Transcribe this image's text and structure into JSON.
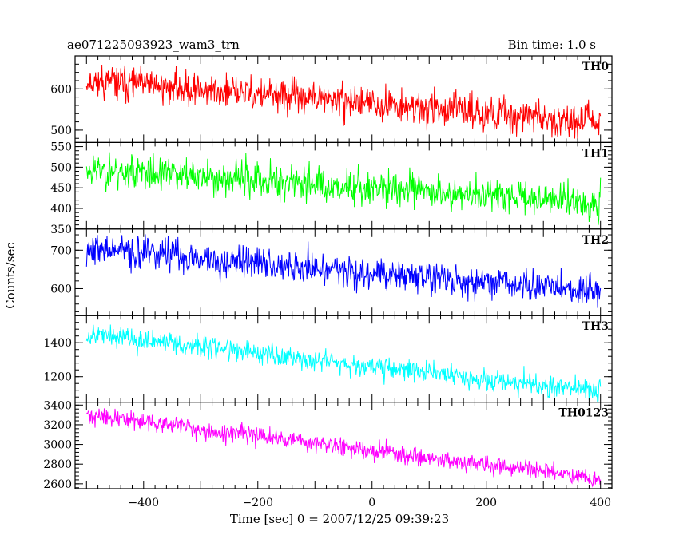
{
  "header": {
    "title": "ae071225093923_wam3_trn",
    "bin_time": "Bin time: 1.0 s"
  },
  "chart_data": {
    "type": "line",
    "xlabel": "Time [sec] 0 = 2007/12/25 09:39:23",
    "ylabel": "Counts/sec",
    "xlim": [
      -520,
      420
    ],
    "x_ticks": [
      -400,
      -200,
      0,
      200,
      400
    ],
    "x_range": [
      -500,
      400
    ],
    "series": [
      {
        "name": "TH0",
        "color": "#ff0000",
        "ylim": [
          470,
          680
        ],
        "y_ticks": [
          500,
          600
        ],
        "y_tick_labels": [
          "500",
          "600"
        ],
        "start": 620,
        "end": 520,
        "noise": 28,
        "seed": 11
      },
      {
        "name": "TH1",
        "color": "#00ff00",
        "ylim": [
          350,
          560
        ],
        "y_ticks": [
          350,
          400,
          450,
          500,
          550
        ],
        "y_tick_labels": [
          "350",
          "400",
          "450",
          "500",
          "550"
        ],
        "start": 495,
        "end": 415,
        "noise": 30,
        "seed": 23
      },
      {
        "name": "TH2",
        "color": "#0000ff",
        "ylim": [
          530,
          755
        ],
        "y_ticks": [
          600,
          700
        ],
        "y_tick_labels": [
          "600",
          "700"
        ],
        "start": 705,
        "end": 590,
        "noise": 30,
        "seed": 37
      },
      {
        "name": "TH3",
        "color": "#00ffff",
        "ylim": [
          1050,
          1560
        ],
        "y_ticks": [
          1200,
          1400
        ],
        "y_tick_labels": [
          "1200",
          "1400"
        ],
        "start": 1455,
        "end": 1110,
        "noise": 45,
        "seed": 53
      },
      {
        "name": "TH0123",
        "color": "#ff00ff",
        "ylim": [
          2550,
          3430
        ],
        "y_ticks": [
          2600,
          2800,
          3000,
          3200,
          3400
        ],
        "y_tick_labels": [
          "2600",
          "2800",
          "3000",
          "3200",
          "3400"
        ],
        "start": 3300,
        "end": 2650,
        "noise": 65,
        "seed": 71
      }
    ]
  }
}
